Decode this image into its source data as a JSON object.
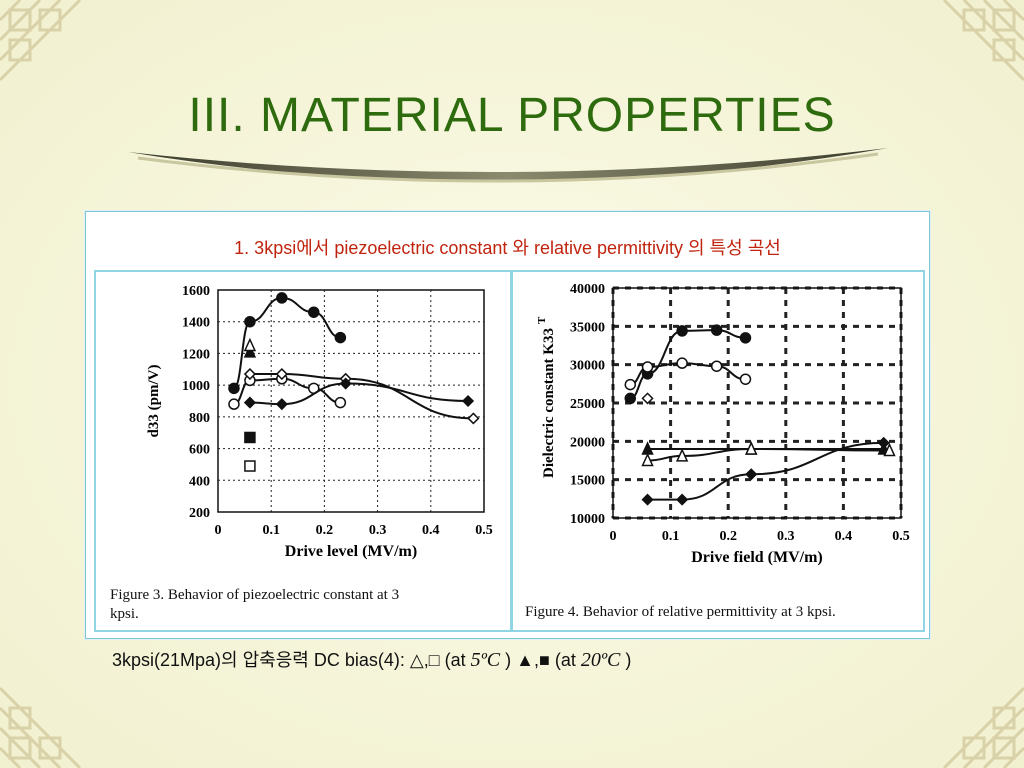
{
  "slide": {
    "title": "III. MATERIAL PROPERTIES",
    "subtitle": "1. 3kpsi에서 piezoelectric constant 와  relative permittivity 의 특성 곡선",
    "footer": {
      "prefix": "3kpsi(21Mpa)의 압축응력  DC bias(4): △,□  (at ",
      "temp1": "5ºC",
      "middle": " ) ▲,■  (at ",
      "temp2": "20ºC",
      "suffix": " )"
    },
    "colors": {
      "title": "#2e6b0f",
      "subtitle": "#c0240e",
      "frame": "#8fd5e4"
    }
  },
  "chart_data": [
    {
      "type": "line",
      "caption_line1": "Figure 3.  Behavior of piezoelectric constant at 3",
      "caption_line2": "kpsi.",
      "xlabel": "Drive level (MV/m)",
      "ylabel": "d33 (pm/V)",
      "xlim": [
        0,
        0.5
      ],
      "ylim": [
        200,
        1600
      ],
      "xticks": [
        "0",
        "0.1",
        "0.2",
        "0.3",
        "0.4",
        "0.5"
      ],
      "yticks": [
        "200",
        "400",
        "600",
        "800",
        "1000",
        "1200",
        "1400",
        "1600"
      ],
      "grid": true,
      "series": [
        {
          "marker": "filled-circle",
          "x": [
            0.03,
            0.06,
            0.12,
            0.18,
            0.23
          ],
          "y": [
            980,
            1400,
            1550,
            1460,
            1300
          ]
        },
        {
          "marker": "filled-triangle",
          "x": [
            0.06
          ],
          "y": [
            1210
          ]
        },
        {
          "marker": "open-triangle",
          "x": [
            0.06
          ],
          "y": [
            1250
          ]
        },
        {
          "marker": "open-circle",
          "x": [
            0.03,
            0.06,
            0.12,
            0.18,
            0.23
          ],
          "y": [
            880,
            1030,
            1040,
            980,
            890
          ]
        },
        {
          "marker": "open-diamond",
          "x": [
            0.06,
            0.12,
            0.24,
            0.48
          ],
          "y": [
            1070,
            1070,
            1040,
            790
          ]
        },
        {
          "marker": "filled-diamond",
          "x": [
            0.06,
            0.12,
            0.24,
            0.47
          ],
          "y": [
            890,
            880,
            1010,
            900
          ]
        },
        {
          "marker": "filled-square",
          "x": [
            0.06
          ],
          "y": [
            670
          ]
        },
        {
          "marker": "open-square",
          "x": [
            0.06
          ],
          "y": [
            490
          ]
        }
      ]
    },
    {
      "type": "line",
      "caption": "Figure 4.  Behavior of relative permittivity at 3 kpsi.",
      "xlabel": "Drive field (MV/m)",
      "ylabel": "Dielectric constant K33",
      "ylabel_sup": "T",
      "xlim": [
        0,
        0.5
      ],
      "ylim": [
        10000,
        40000
      ],
      "xticks": [
        "0",
        "0.1",
        "0.2",
        "0.3",
        "0.4",
        "0.5"
      ],
      "yticks": [
        "10000",
        "15000",
        "20000",
        "25000",
        "30000",
        "35000",
        "40000"
      ],
      "grid": true,
      "series": [
        {
          "marker": "filled-circle",
          "x": [
            0.03,
            0.06,
            0.12,
            0.18,
            0.23
          ],
          "y": [
            25600,
            28800,
            34400,
            34500,
            33500
          ]
        },
        {
          "marker": "open-circle",
          "x": [
            0.03,
            0.06,
            0.12,
            0.18,
            0.23
          ],
          "y": [
            27400,
            29700,
            30200,
            29800,
            28100
          ]
        },
        {
          "marker": "open-diamond",
          "x": [
            0.06
          ],
          "y": [
            25600
          ]
        },
        {
          "marker": "filled-triangle",
          "x": [
            0.06,
            0.24,
            0.47
          ],
          "y": [
            19000,
            19000,
            19000
          ]
        },
        {
          "marker": "open-triangle",
          "x": [
            0.06,
            0.12,
            0.24,
            0.48
          ],
          "y": [
            17500,
            18100,
            19000,
            18800
          ]
        },
        {
          "marker": "filled-diamond",
          "x": [
            0.06,
            0.12,
            0.24,
            0.47
          ],
          "y": [
            12400,
            12400,
            15700,
            19800
          ]
        }
      ]
    }
  ]
}
